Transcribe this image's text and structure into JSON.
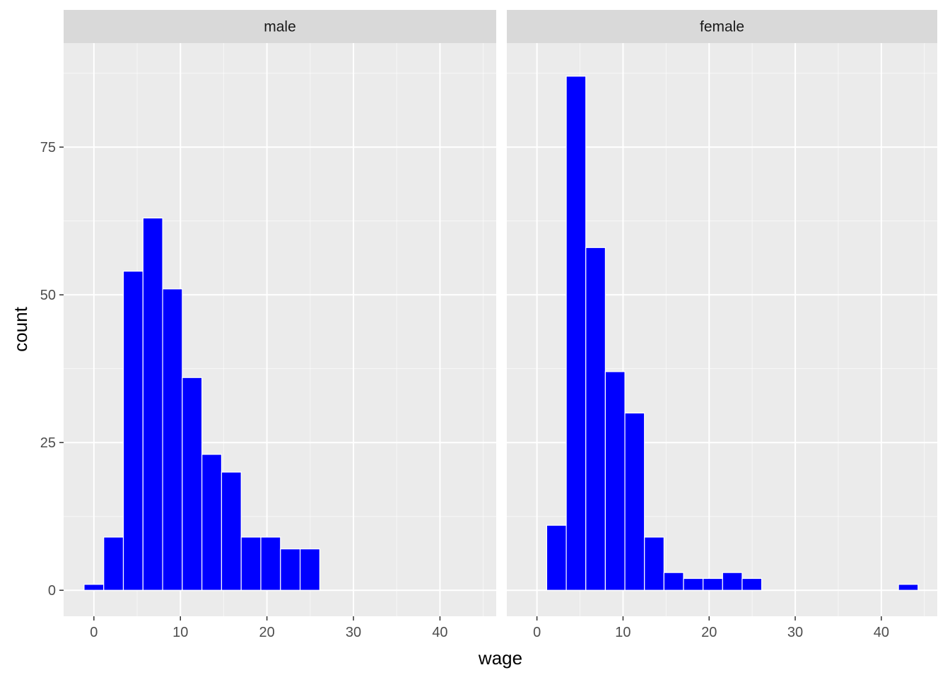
{
  "chart_data": {
    "type": "bar",
    "subtype": "faceted-histogram",
    "xlabel": "wage",
    "ylabel": "count",
    "xlim": [
      -3.5,
      46.5
    ],
    "ylim": [
      -4.4,
      92.6
    ],
    "x_ticks": [
      0,
      10,
      20,
      30,
      40
    ],
    "x_tick_labels": [
      "0",
      "10",
      "20",
      "30",
      "40"
    ],
    "y_ticks": [
      0,
      25,
      50,
      75
    ],
    "y_tick_labels": [
      "0",
      "25",
      "50",
      "75"
    ],
    "binwidth": 2.27,
    "grid": true,
    "colors": {
      "bar_fill": "#0000FF",
      "bar_outline": "#FFFFFF",
      "panel_background": "#EBEBEB",
      "strip_background": "#D9D9D9",
      "grid": "#FFFFFF"
    },
    "panels": [
      {
        "label": "male",
        "bins": [
          {
            "x": 0,
            "count": 1
          },
          {
            "x": 2.27,
            "count": 9
          },
          {
            "x": 4.54,
            "count": 54
          },
          {
            "x": 6.81,
            "count": 63
          },
          {
            "x": 9.08,
            "count": 51
          },
          {
            "x": 11.35,
            "count": 36
          },
          {
            "x": 13.62,
            "count": 23
          },
          {
            "x": 15.89,
            "count": 20
          },
          {
            "x": 18.16,
            "count": 9
          },
          {
            "x": 20.43,
            "count": 9
          },
          {
            "x": 22.7,
            "count": 7
          },
          {
            "x": 24.97,
            "count": 7
          }
        ]
      },
      {
        "label": "female",
        "bins": [
          {
            "x": 2.27,
            "count": 11
          },
          {
            "x": 4.54,
            "count": 87
          },
          {
            "x": 6.81,
            "count": 58
          },
          {
            "x": 9.08,
            "count": 37
          },
          {
            "x": 11.35,
            "count": 30
          },
          {
            "x": 13.62,
            "count": 9
          },
          {
            "x": 15.89,
            "count": 3
          },
          {
            "x": 18.16,
            "count": 2
          },
          {
            "x": 20.43,
            "count": 2
          },
          {
            "x": 22.7,
            "count": 3
          },
          {
            "x": 24.97,
            "count": 2
          },
          {
            "x": 43.13,
            "count": 1
          }
        ]
      }
    ]
  }
}
